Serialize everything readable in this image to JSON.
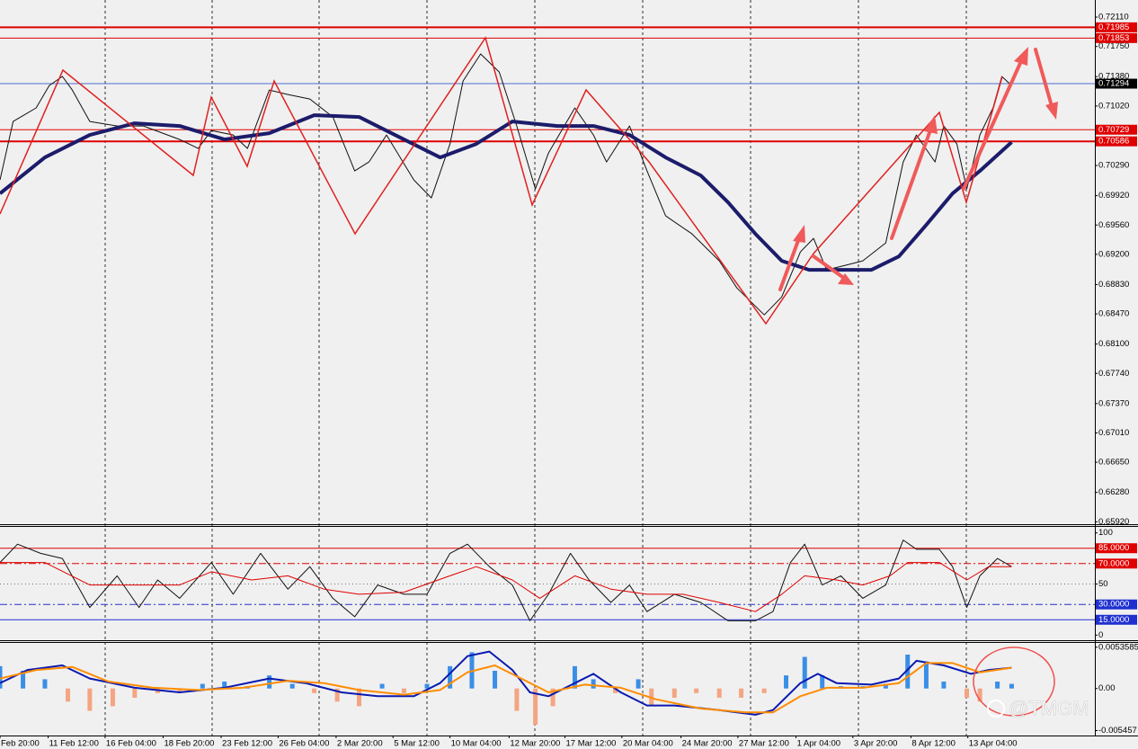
{
  "watermark": "@TMGM",
  "chart_data": [
    {
      "type": "line",
      "xlim": [
        0,
        100
      ],
      "ylim": [
        0.6589,
        0.7232
      ],
      "yticks": [
        {
          "value": 0.7211,
          "label": "0.72110"
        },
        {
          "value": 0.7175,
          "label": "0.71750"
        },
        {
          "value": 0.7138,
          "label": "0.71380"
        },
        {
          "value": 0.7102,
          "label": "0.71020"
        },
        {
          "value": 0.7029,
          "label": "0.70290"
        },
        {
          "value": 0.6992,
          "label": "0.69920"
        },
        {
          "value": 0.6956,
          "label": "0.69560"
        },
        {
          "value": 0.692,
          "label": "0.69200"
        },
        {
          "value": 0.6883,
          "label": "0.68830"
        },
        {
          "value": 0.6847,
          "label": "0.68470"
        },
        {
          "value": 0.681,
          "label": "0.68100"
        },
        {
          "value": 0.6774,
          "label": "0.67740"
        },
        {
          "value": 0.6737,
          "label": "0.67370"
        },
        {
          "value": 0.6701,
          "label": "0.67010"
        },
        {
          "value": 0.6665,
          "label": "0.66650"
        },
        {
          "value": 0.6628,
          "label": "0.66280"
        },
        {
          "value": 0.6592,
          "label": "0.65920"
        }
      ],
      "levels": [
        {
          "value": 0.71985,
          "color": "#e00000",
          "label_color": "#e00000",
          "thick": true
        },
        {
          "value": 0.71853,
          "color": "#e00000",
          "label_color": "#e00000",
          "thick": false
        },
        {
          "value": 0.71294,
          "color": "#4a6fd0",
          "label_color": "#000000",
          "thick": false
        },
        {
          "value": 0.70729,
          "color": "#e00000",
          "label_color": "#e00000",
          "thick": false
        },
        {
          "value": 0.70586,
          "color": "#e00000",
          "label_color": "#e00000",
          "thick": true
        }
      ],
      "series": [
        {
          "type": "line",
          "color": "#111111",
          "width": 1,
          "x": [
            0,
            1.2,
            3.3,
            4.5,
            5.7,
            6.6,
            8.2,
            10.7,
            13.1,
            16.4,
            18.1,
            19.3,
            21.3,
            22.6,
            24.6,
            26.3,
            28.3,
            30.4,
            32.4,
            33.7,
            35.3,
            37.8,
            39.4,
            41.1,
            42.3,
            43.9,
            45.6,
            47.2,
            48.9,
            50.1,
            52.5,
            54.2,
            55.4,
            57.5,
            59.1,
            60.8,
            63.2,
            65.7,
            67.3,
            69.8,
            71.4,
            73.1,
            74.3,
            75.5,
            77.2,
            78.8,
            80.9,
            82.5,
            83.7,
            85.4,
            86.2,
            87.4,
            88.3,
            89.5,
            90.7,
            91.5,
            92.4
          ],
          "values": [
            0.70113,
            0.7083,
            0.70996,
            0.71271,
            0.71382,
            0.71216,
            0.7083,
            0.70775,
            0.70775,
            0.70609,
            0.70499,
            0.7072,
            0.70665,
            0.70499,
            0.71216,
            0.71161,
            0.71106,
            0.70885,
            0.70223,
            0.70334,
            0.70665,
            0.70113,
            0.69892,
            0.70554,
            0.71327,
            0.71658,
            0.71437,
            0.70775,
            0.70003,
            0.70444,
            0.70996,
            0.70665,
            0.70334,
            0.70775,
            0.70223,
            0.69672,
            0.69451,
            0.6912,
            0.68789,
            0.68458,
            0.68678,
            0.6923,
            0.69396,
            0.6901,
            0.69065,
            0.6912,
            0.69341,
            0.70334,
            0.70665,
            0.70334,
            0.70775,
            0.70554,
            0.70003,
            0.70665,
            0.70996,
            0.71382,
            0.71271
          ]
        },
        {
          "type": "line",
          "color": "#1c1c6b",
          "width": 4,
          "x": [
            0,
            4.1,
            8.2,
            12.3,
            16.4,
            20.5,
            24.6,
            28.7,
            32.8,
            36.9,
            40.2,
            43.5,
            46.8,
            50.9,
            54.2,
            57.5,
            60.8,
            64,
            66.5,
            69,
            71.4,
            73.9,
            77.2,
            79.6,
            82.1,
            84.6,
            87,
            89.5,
            92.4
          ],
          "values": [
            0.69947,
            0.70389,
            0.70665,
            0.70808,
            0.70775,
            0.70609,
            0.70687,
            0.70907,
            0.70885,
            0.70609,
            0.70389,
            0.70554,
            0.7083,
            0.70775,
            0.70775,
            0.70665,
            0.70389,
            0.70168,
            0.69837,
            0.69451,
            0.6912,
            0.6901,
            0.6901,
            0.6901,
            0.69175,
            0.69561,
            0.69947,
            0.70223,
            0.70576
          ]
        }
      ]
    },
    {
      "type": "line",
      "xlim": [
        0,
        100
      ],
      "ylim": [
        -5,
        105
      ],
      "yticks": [
        100,
        50,
        0
      ],
      "levels": [
        {
          "value": 85,
          "label": "85.0000",
          "color": "#e00000",
          "label_color": "#e00000",
          "dash": ""
        },
        {
          "value": 70,
          "label": "70.0000",
          "color": "#e00000",
          "label_color": "#e00000",
          "dash": "8 3 2 3"
        },
        {
          "value": 50,
          "color": "#777777",
          "dash": "1 3"
        },
        {
          "value": 30,
          "label": "30.0000",
          "color": "#2030d0",
          "label_color": "#2030d0",
          "dash": "8 3 2 3"
        },
        {
          "value": 15,
          "label": "15.0000",
          "color": "#2030d0",
          "label_color": "#2030d0",
          "dash": ""
        }
      ],
      "series": [
        {
          "type": "line",
          "color": "#111111",
          "width": 1,
          "x": [
            0,
            1.6,
            3.7,
            5.7,
            8.2,
            10.7,
            12.7,
            14.4,
            16.4,
            19.3,
            21.3,
            23.8,
            26.3,
            28.3,
            30.4,
            32.4,
            34.5,
            36.9,
            39,
            41.1,
            42.7,
            44.7,
            46.8,
            48.4,
            50.1,
            52.1,
            53.8,
            55.8,
            57.5,
            59.1,
            61.6,
            64,
            66.5,
            69,
            70.6,
            72.2,
            73.5,
            75.1,
            76.8,
            78.8,
            80.9,
            82.5,
            83.7,
            85.8,
            87,
            88.3,
            89.5,
            91.1,
            92.4
          ],
          "values": [
            71,
            89,
            80,
            75,
            27,
            58,
            27,
            54,
            36,
            71,
            40,
            80,
            45,
            67,
            36,
            18,
            49,
            40,
            40,
            80,
            89,
            67,
            49,
            14,
            40,
            80,
            54,
            32,
            49,
            23,
            40,
            32,
            14,
            14,
            23,
            71,
            89,
            49,
            58,
            36,
            49,
            93,
            84,
            84,
            67,
            27,
            58,
            75,
            67
          ]
        },
        {
          "type": "line",
          "color": "#e00000",
          "width": 1,
          "x": [
            0,
            4.1,
            8.2,
            12.3,
            16.4,
            19.3,
            23,
            26.3,
            29.6,
            32.8,
            36.9,
            41.1,
            43.5,
            46.8,
            49.3,
            52.5,
            55.8,
            59.1,
            62.4,
            65.7,
            69,
            71.4,
            73.5,
            76.4,
            78.8,
            81.3,
            82.9,
            85.8,
            88.3,
            90.3,
            92.4
          ],
          "values": [
            71,
            71,
            49,
            49,
            49,
            62,
            54,
            58,
            45,
            40,
            42,
            58,
            67,
            54,
            36,
            58,
            45,
            40,
            40,
            32,
            23,
            40,
            58,
            54,
            49,
            58,
            71,
            71,
            54,
            67,
            67
          ]
        }
      ]
    },
    {
      "type": "bar",
      "xlim": [
        0,
        100
      ],
      "ylim": [
        -0.0061,
        0.0058
      ],
      "yticks": [
        0.0053585,
        {
          "value": 0,
          "label": "0.00"
        },
        -0.005457
      ],
      "xticks": [
        {
          "value": 0,
          "label": "Feb 20:00"
        },
        {
          "value": 4.4,
          "label": "11 Feb 12:00"
        },
        {
          "value": 9.6,
          "label": "16 Feb 04:00"
        },
        {
          "value": 14.9,
          "label": "18 Feb 20:00"
        },
        {
          "value": 20.2,
          "label": "23 Feb 12:00"
        },
        {
          "value": 25.4,
          "label": "26 Feb 04:00"
        },
        {
          "value": 30.7,
          "label": "2 Mar 20:00"
        },
        {
          "value": 35.9,
          "label": "5 Mar 12:00"
        },
        {
          "value": 41.1,
          "label": "10 Mar 04:00"
        },
        {
          "value": 46.5,
          "label": "12 Mar 20:00"
        },
        {
          "value": 51.6,
          "label": "17 Mar 12:00"
        },
        {
          "value": 56.8,
          "label": "20 Mar 04:00"
        },
        {
          "value": 62.2,
          "label": "24 Mar 20:00"
        },
        {
          "value": 67.4,
          "label": "27 Mar 12:00"
        },
        {
          "value": 72.7,
          "label": "1 Apr 04:00"
        },
        {
          "value": 77.9,
          "label": "3 Apr 20:00"
        },
        {
          "value": 83.2,
          "label": "8 Apr 12:00"
        },
        {
          "value": 88.4,
          "label": "13 Apr 04:00"
        }
      ],
      "series": [
        {
          "type": "bar",
          "positive_color": "#3a8ee6",
          "negative_color": "#f4a582",
          "x": [
            0,
            2.1,
            4.1,
            6.2,
            8.2,
            10.3,
            12.3,
            14.4,
            16.4,
            18.5,
            20.5,
            22.6,
            24.6,
            26.7,
            28.7,
            30.8,
            32.8,
            34.9,
            36.9,
            39,
            41.1,
            43.1,
            45.2,
            47.2,
            48.9,
            50.5,
            52.5,
            54.2,
            56.2,
            58.3,
            59.5,
            61.6,
            63.6,
            65.7,
            67.7,
            69.8,
            71.8,
            73.5,
            75.1,
            76.8,
            78.8,
            80.9,
            82.9,
            84.6,
            86.2,
            88.3,
            89.5,
            91.1,
            92.4
          ],
          "values": [
            0.0029,
            0.0023,
            0.0012,
            -0.0017,
            -0.0029,
            -0.0023,
            -0.0012,
            -0.0006,
            -0.0006,
            0.0006,
            0.0009,
            0.0003,
            0.0017,
            0.0006,
            -0.0006,
            -0.0017,
            -0.0023,
            0.0006,
            -0.0006,
            0.0006,
            0.0029,
            0.0047,
            0.0023,
            -0.0029,
            -0.0047,
            -0.0023,
            0.0029,
            0.0012,
            -0.0006,
            0.0012,
            -0.0023,
            -0.0012,
            -0.0006,
            -0.0012,
            -0.0012,
            -0.0006,
            0.0017,
            0.0041,
            0.0017,
            0.0003,
            0.0003,
            0.0006,
            0.0044,
            0.0035,
            0.0009,
            -0.0012,
            -0.0017,
            0.0009,
            0.0006
          ]
        },
        {
          "type": "line",
          "color": "#0a1ab0",
          "width": 2,
          "x": [
            0,
            2.5,
            5.7,
            8.2,
            12.3,
            16.4,
            20.5,
            24.6,
            27.9,
            31.2,
            34.5,
            37.8,
            40.2,
            42.7,
            44.7,
            46.8,
            48.4,
            50.1,
            52.5,
            54.2,
            56.7,
            59.1,
            61.6,
            65.7,
            69,
            70.6,
            73.1,
            74.7,
            76.4,
            79.6,
            82.1,
            83.7,
            86.2,
            88.7,
            90.3,
            92.4
          ],
          "values": [
            0.0007,
            0.0024,
            0.003,
            0.0013,
            0.0001,
            -0.0005,
            0.0001,
            0.0013,
            0.0007,
            -0.0005,
            -0.001,
            -0.001,
            0.0007,
            0.0042,
            0.0048,
            0.0024,
            -0.0005,
            -0.001,
            0.0007,
            0.0019,
            -0.0005,
            -0.0022,
            -0.0022,
            -0.0028,
            -0.0034,
            -0.0028,
            0.0007,
            0.0019,
            0.0007,
            0.0005,
            0.0013,
            0.0036,
            0.003,
            0.0019,
            0.0024,
            0.0027
          ]
        },
        {
          "type": "line",
          "color": "#ff8c00",
          "width": 2,
          "x": [
            0,
            3.3,
            6.6,
            9.9,
            14,
            18.1,
            22.2,
            26.3,
            29.6,
            32.8,
            36.9,
            40.2,
            42.7,
            45.2,
            47.6,
            50.1,
            53.4,
            56.7,
            59.9,
            64,
            68.1,
            70.6,
            73.1,
            75.5,
            78.8,
            82.1,
            84.6,
            87,
            89.5,
            92.4
          ],
          "values": [
            0.0013,
            0.0024,
            0.0028,
            0.0009,
            0.0001,
            -0.0002,
            0.0001,
            0.001,
            0.0007,
            -0.0002,
            -0.0008,
            -0.0002,
            0.0021,
            0.003,
            0.0013,
            -0.0005,
            0.0005,
            0.0001,
            -0.0014,
            -0.0026,
            -0.0031,
            -0.0031,
            -0.001,
            0.0001,
            0.0001,
            0.0007,
            0.0033,
            0.0033,
            0.0021,
            0.0027
          ]
        }
      ]
    }
  ]
}
